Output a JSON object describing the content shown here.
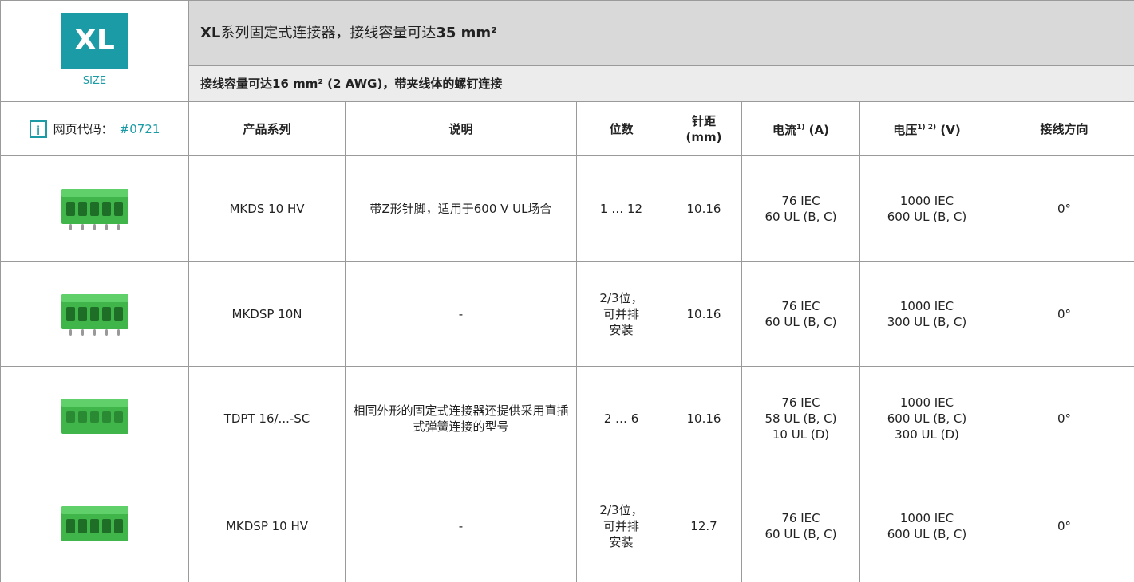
{
  "logo": {
    "text": "XL",
    "caption": "SIZE"
  },
  "header": {
    "title": [
      "XL",
      "系列固定式连接器，接线容量可达",
      "35 mm²"
    ],
    "subtitle": [
      "接线容量可达",
      "16 mm² (2 AWG)",
      "，带夹线体的螺钉连接"
    ]
  },
  "page_code": {
    "label": "网页代码：",
    "code": "#0721"
  },
  "table": {
    "columns": [
      {
        "lines": [
          "产品系列"
        ]
      },
      {
        "lines": [
          "说明"
        ]
      },
      {
        "lines": [
          "位数"
        ]
      },
      {
        "lines": [
          "针距",
          "(mm)"
        ]
      },
      {
        "text": "电流",
        "sup": "1)",
        "unit": "(A)"
      },
      {
        "text": "电压",
        "sup": "1) 2)",
        "unit": "(V)"
      },
      {
        "lines": [
          "接线方向"
        ]
      }
    ],
    "rows": [
      {
        "series": "MKDS 10 HV",
        "description": "带Z形针脚，适用于600 V UL场合",
        "positions": [
          "1 … 12"
        ],
        "pitch": "10.16",
        "current": [
          "76 IEC",
          "60 UL (B, C)"
        ],
        "voltage": [
          "1000 IEC",
          "600 UL (B, C)"
        ],
        "direction": "0°"
      },
      {
        "series": "MKDSP 10N",
        "description": "-",
        "positions": [
          "2/3位，",
          "可并排",
          "安装"
        ],
        "pitch": "10.16",
        "current": [
          "76 IEC",
          "60 UL (B, C)"
        ],
        "voltage": [
          "1000 IEC",
          "300 UL (B, C)"
        ],
        "direction": "0°"
      },
      {
        "series": "TDPT 16/...-SC",
        "description": "相同外形的固定式连接器还提供采用直插式弹簧连接的型号",
        "positions": [
          "2 … 6"
        ],
        "pitch": "10.16",
        "current": [
          "76 IEC",
          "58 UL (B, C)",
          "10 UL (D)"
        ],
        "voltage": [
          "1000 IEC",
          "600 UL (B, C)",
          "300 UL (D)"
        ],
        "direction": "0°"
      },
      {
        "series": "MKDSP 10 HV",
        "description": "-",
        "positions": [
          "2/3位，",
          "可并排",
          "安装"
        ],
        "pitch": "12.7",
        "current": [
          "76 IEC",
          "60 UL (B, C)"
        ],
        "voltage": [
          "1000 IEC",
          "600 UL (B, C)"
        ],
        "direction": "0°"
      }
    ]
  }
}
